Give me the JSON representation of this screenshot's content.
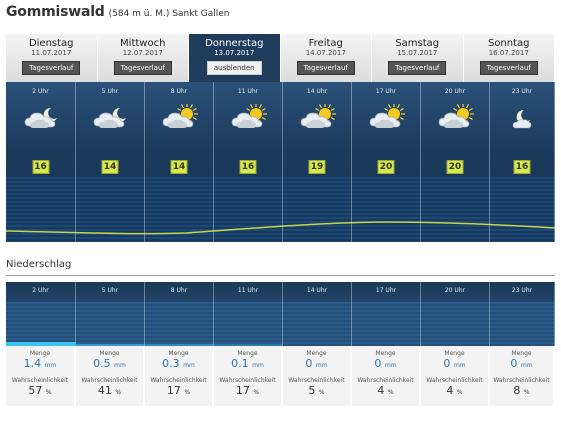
{
  "header": {
    "location": "Gommiswald",
    "subtitle": "(584 m ü. M.) Sankt Gallen"
  },
  "tabs": [
    {
      "day": "Dienstag",
      "date": "11.07.2017",
      "button": "Tagesverlauf",
      "active": false
    },
    {
      "day": "Mittwoch",
      "date": "12.07.2017",
      "button": "Tagesverlauf",
      "active": false
    },
    {
      "day": "Donnerstag",
      "date": "13.07.2017",
      "button": "ausblenden",
      "active": true
    },
    {
      "day": "Freitag",
      "date": "14.07.2017",
      "button": "Tagesverlauf",
      "active": false
    },
    {
      "day": "Samstag",
      "date": "15.07.2017",
      "button": "Tagesverlauf",
      "active": false
    },
    {
      "day": "Sonntag",
      "date": "16.07.2017",
      "button": "Tagesverlauf",
      "active": false
    }
  ],
  "forecast": [
    {
      "hour": "2 Uhr",
      "icon": "cloud-moon-icon",
      "temp": "16"
    },
    {
      "hour": "5 Uhr",
      "icon": "cloud-moon-icon",
      "temp": "14"
    },
    {
      "hour": "8 Uhr",
      "icon": "cloud-sun-icon",
      "temp": "14"
    },
    {
      "hour": "11 Uhr",
      "icon": "cloud-sun-icon",
      "temp": "16"
    },
    {
      "hour": "14 Uhr",
      "icon": "cloud-sun-icon",
      "temp": "19"
    },
    {
      "hour": "17 Uhr",
      "icon": "cloud-sun-icon",
      "temp": "20"
    },
    {
      "hour": "20 Uhr",
      "icon": "cloud-sun-icon",
      "temp": "20"
    },
    {
      "hour": "23 Uhr",
      "icon": "moon-cloud-icon",
      "temp": "16"
    }
  ],
  "precipitation": {
    "title": "Niederschlag",
    "amount_label": "Menge",
    "probability_label": "Wahrscheinlichkeit",
    "amount_unit": "mm",
    "probability_unit": "%",
    "items": [
      {
        "hour": "2 Uhr",
        "amount": "1.4",
        "probability": "57"
      },
      {
        "hour": "5 Uhr",
        "amount": "0.5",
        "probability": "41"
      },
      {
        "hour": "8 Uhr",
        "amount": "0.3",
        "probability": "17"
      },
      {
        "hour": "11 Uhr",
        "amount": "0.1",
        "probability": "17"
      },
      {
        "hour": "14 Uhr",
        "amount": "0",
        "probability": "5"
      },
      {
        "hour": "17 Uhr",
        "amount": "0",
        "probability": "4"
      },
      {
        "hour": "20 Uhr",
        "amount": "0",
        "probability": "4"
      },
      {
        "hour": "23 Uhr",
        "amount": "0",
        "probability": "8"
      }
    ]
  },
  "colors": {
    "panel": "#1f3c5c",
    "temp_badge": "#d7e84a",
    "rain": "#39c4f0",
    "amount_text": "#2b74b5"
  }
}
